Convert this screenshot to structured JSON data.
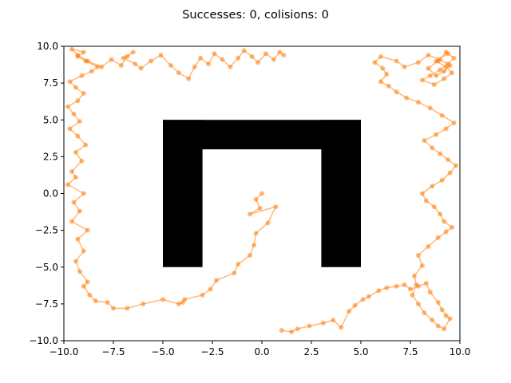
{
  "chart_data": {
    "type": "scatter",
    "title": "Successes: 0, colisions: 0",
    "xlabel": "",
    "ylabel": "",
    "xlim": [
      -10,
      10
    ],
    "ylim": [
      -10,
      10
    ],
    "xticks": [
      -10.0,
      -7.5,
      -5.0,
      -2.5,
      0.0,
      2.5,
      5.0,
      7.5,
      10.0
    ],
    "yticks": [
      -10.0,
      -7.5,
      -5.0,
      -2.5,
      0.0,
      2.5,
      5.0,
      7.5,
      10.0
    ],
    "xtick_labels": [
      "−10.0",
      "−7.5",
      "−5.0",
      "−2.5",
      "0.0",
      "2.5",
      "5.0",
      "7.5",
      "10.0"
    ],
    "ytick_labels": [
      "−10.0",
      "−7.5",
      "−5.0",
      "−2.5",
      "0.0",
      "2.5",
      "5.0",
      "7.5",
      "10.0"
    ],
    "grid": false,
    "colors": {
      "trajectory": "#ff7f0e",
      "obstacle": "#000000"
    },
    "obstacles": [
      {
        "x": [
          -5,
          5
        ],
        "y": [
          3,
          5
        ]
      },
      {
        "x": [
          -5,
          -3
        ],
        "y": [
          -5,
          5
        ]
      },
      {
        "x": [
          3,
          5
        ],
        "y": [
          -5,
          5
        ]
      }
    ],
    "series": [
      {
        "marker": "circle",
        "x": [
          0.0,
          -0.3,
          -0.1,
          -0.6,
          0.7,
          0.3,
          -0.3,
          -0.4,
          -0.6,
          -1.2,
          -1.4,
          -2.3,
          -2.6,
          -3.0,
          -3.9,
          -4.0,
          -4.2,
          -5.0,
          -6.0,
          -6.8,
          -7.5,
          -7.8,
          -8.4,
          -8.7,
          -9.0,
          -8.8,
          -9.2,
          -9.4,
          -9.0,
          -9.3,
          -8.8,
          -9.6,
          -9.2,
          -9.5,
          -9.0,
          -9.8,
          -9.4,
          -9.6,
          -9.1,
          -9.4,
          -8.9,
          -9.3,
          -9.7,
          -9.2,
          -9.5,
          -9.8,
          -9.3,
          -9.0,
          -9.4,
          -9.7,
          -9.1,
          -8.6,
          -8.3,
          -8.9,
          -9.3,
          -9.0,
          -9.6,
          -9.3,
          -8.8,
          -8.1,
          -7.6,
          -7.1,
          -6.8,
          -6.5,
          -7.0,
          -6.4,
          -6.1,
          -5.6,
          -5.1,
          -4.6,
          -4.2,
          -3.7,
          -3.4,
          -3.1,
          -2.7,
          -2.4,
          -2.0,
          -1.6,
          -1.2,
          -0.9,
          -0.5,
          -0.2,
          0.2,
          0.6,
          0.9,
          1.1
        ],
        "y": [
          0.0,
          -0.4,
          -1.0,
          -1.4,
          -0.9,
          -2.0,
          -2.7,
          -3.5,
          -4.2,
          -4.8,
          -5.4,
          -5.9,
          -6.5,
          -6.9,
          -7.2,
          -7.4,
          -7.5,
          -7.2,
          -7.5,
          -7.8,
          -7.8,
          -7.4,
          -7.3,
          -6.9,
          -6.3,
          -6.0,
          -5.3,
          -4.6,
          -3.9,
          -3.1,
          -2.5,
          -1.9,
          -1.2,
          -0.6,
          0.0,
          0.6,
          1.1,
          1.5,
          2.2,
          2.8,
          3.3,
          3.9,
          4.4,
          4.9,
          5.4,
          5.9,
          6.3,
          6.8,
          7.2,
          7.6,
          8.0,
          8.3,
          8.6,
          9.0,
          9.3,
          9.6,
          9.8,
          9.4,
          9.0,
          8.6,
          9.1,
          8.7,
          9.3,
          9.6,
          9.2,
          8.8,
          8.5,
          9.0,
          9.4,
          8.7,
          8.2,
          7.8,
          8.6,
          9.2,
          8.8,
          9.5,
          9.1,
          8.6,
          9.2,
          9.7,
          9.3,
          8.9,
          9.5,
          9.1,
          9.6,
          9.4
        ]
      },
      {
        "marker": "circle",
        "x": [
          1.0,
          1.5,
          1.8,
          2.4,
          3.1,
          3.6,
          4.0,
          4.4,
          4.7,
          5.1,
          5.4,
          5.9,
          6.3,
          6.8,
          7.2,
          7.5,
          7.9,
          8.3,
          8.5,
          8.9,
          9.1,
          9.3,
          9.5,
          9.2,
          8.9,
          8.6,
          8.2,
          7.9,
          7.6,
          7.8,
          7.7,
          8.1,
          7.9,
          8.4,
          8.9,
          9.3,
          9.6,
          9.2,
          9.0,
          8.7,
          8.3,
          8.1,
          8.6,
          9.1,
          9.5,
          9.8,
          9.4,
          9.0,
          8.6,
          8.2,
          8.8,
          9.3,
          9.7,
          9.1,
          8.5,
          7.9,
          7.3,
          6.8,
          6.4,
          6.0,
          6.3,
          6.1,
          5.7,
          6.0,
          6.8,
          7.2,
          7.9,
          8.4,
          9.0,
          9.5,
          9.2,
          8.8,
          8.4,
          8.9,
          9.3,
          9.7,
          9.4,
          9.0,
          8.5,
          8.1,
          8.7,
          9.2,
          9.6,
          9.3,
          8.8,
          9.4
        ],
        "y": [
          -9.3,
          -9.4,
          -9.2,
          -9.0,
          -8.8,
          -8.6,
          -9.1,
          -8.0,
          -7.6,
          -7.2,
          -7.0,
          -6.6,
          -6.4,
          -6.3,
          -6.2,
          -6.5,
          -6.3,
          -6.1,
          -6.7,
          -7.4,
          -7.9,
          -8.3,
          -8.5,
          -9.2,
          -9.0,
          -8.6,
          -8.1,
          -7.5,
          -6.9,
          -6.2,
          -5.6,
          -4.9,
          -4.2,
          -3.6,
          -3.0,
          -2.6,
          -2.3,
          -1.9,
          -1.4,
          -0.9,
          -0.5,
          0.0,
          0.5,
          0.9,
          1.4,
          1.9,
          2.3,
          2.7,
          3.1,
          3.6,
          4.0,
          4.4,
          4.8,
          5.3,
          5.8,
          6.2,
          6.5,
          6.9,
          7.3,
          7.6,
          8.1,
          8.5,
          8.9,
          9.3,
          9.0,
          8.6,
          8.9,
          9.4,
          9.1,
          8.7,
          8.3,
          8.0,
          8.5,
          9.0,
          9.6,
          9.2,
          8.8,
          8.4,
          8.0,
          7.7,
          7.4,
          7.8,
          8.2,
          8.6,
          9.0,
          9.5
        ]
      }
    ]
  }
}
